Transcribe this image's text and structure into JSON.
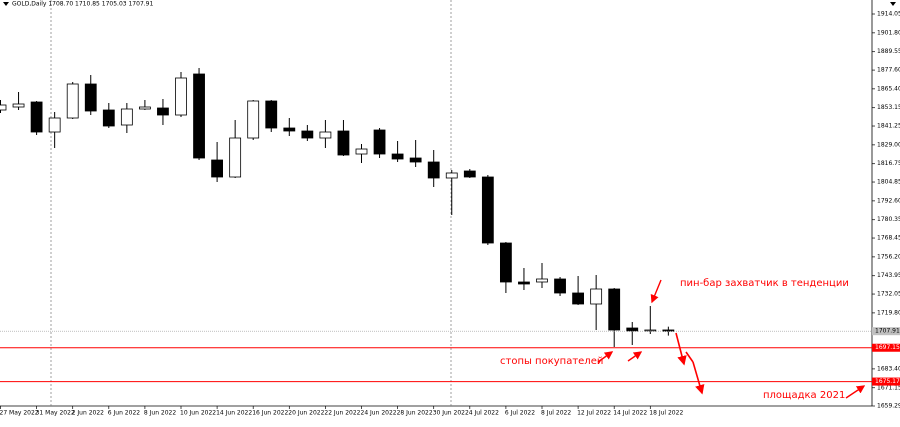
{
  "chart_data": {
    "type": "candlestick",
    "title": "GOLD,Daily  1708.70 1710.85 1705.03 1707.91",
    "categories": [
      "27 May 2022",
      null,
      "31 May 2022",
      null,
      "2 Jun 2022",
      null,
      "6 Jun 2022",
      null,
      "8 Jun 2022",
      null,
      "10 Jun 2022",
      null,
      "14 Jun 2022",
      null,
      "16 Jun 2022",
      null,
      "20 Jun 2022",
      null,
      "22 Jun 2022",
      null,
      "24 Jun 2022",
      null,
      "28 Jun 2022",
      null,
      "30 Jun 2022",
      null,
      "4 Jul 2022",
      null,
      "6 Jul 2022",
      null,
      "8 Jul 2022",
      null,
      "12 Jul 2022",
      null,
      "14 Jul 2022",
      null,
      "18 Jul 2022",
      null
    ],
    "open": [
      1851.66,
      1853.61,
      1856.86,
      1837.36,
      1846.46,
      1868.56,
      1851.66,
      1841.91,
      1852.31,
      1852.96,
      1848.41,
      1875.06,
      1819.16,
      1808.12,
      1833.46,
      1857.51,
      1839.96,
      1838.01,
      1833.46,
      1838.01,
      1823.06,
      1838.66,
      1823.06,
      1820.46,
      1817.86,
      1807.47,
      1812.02,
      1808.12,
      1765.22,
      1739.88,
      1739.88,
      1741.83,
      1732.73,
      1725.58,
      1735.33,
      1709.98,
      1708.03,
      1708.7
    ],
    "high": [
      1858.16,
      1863.36,
      1857.51,
      1850.36,
      1869.86,
      1874.41,
      1856.21,
      1856.21,
      1858.16,
      1858.81,
      1876.36,
      1878.96,
      1830.86,
      1845.16,
      1858.16,
      1858.16,
      1846.46,
      1841.91,
      1845.16,
      1845.16,
      1829.56,
      1839.96,
      1831.51,
      1832.16,
      1825.66,
      1812.67,
      1813.32,
      1809.42,
      1765.87,
      1748.98,
      1752.22,
      1743.13,
      1743.78,
      1744.43,
      1735.98,
      1713.88,
      1724.27,
      1710.85
    ],
    "low": [
      1849.71,
      1851.66,
      1835.41,
      1826.96,
      1845.8,
      1848.41,
      1839.96,
      1836.71,
      1851.66,
      1841.91,
      1847.11,
      1819.16,
      1804.87,
      1807.47,
      1832.16,
      1837.36,
      1834.76,
      1831.51,
      1826.96,
      1821.76,
      1817.21,
      1820.46,
      1817.86,
      1814.61,
      1801.62,
      1783.42,
      1807.47,
      1763.92,
      1732.73,
      1734.68,
      1735.98,
      1730.78,
      1724.92,
      1708.68,
      1697.63,
      1698.93,
      1706.08,
      1705.03
    ],
    "close": [
      1854.91,
      1855.56,
      1837.36,
      1846.46,
      1868.56,
      1851.01,
      1841.26,
      1852.31,
      1853.61,
      1848.41,
      1872.46,
      1820.46,
      1808.12,
      1833.46,
      1857.51,
      1839.96,
      1838.01,
      1833.46,
      1837.36,
      1822.41,
      1826.31,
      1823.06,
      1819.81,
      1817.86,
      1807.47,
      1810.72,
      1808.12,
      1765.22,
      1739.88,
      1738.58,
      1741.83,
      1732.73,
      1725.58,
      1735.33,
      1708.68,
      1708.03,
      1708.68,
      1707.91
    ],
    "up_color": "#ffffff",
    "down_color": "#000000",
    "ylim": [
      1659.29,
      1923.15
    ],
    "yticks": [
      1914.05,
      {
        "value": 1901.8,
        "label": "1901.80"
      },
      1889.55,
      {
        "value": 1877.6,
        "label": "1877.60"
      },
      {
        "value": 1865.4,
        "label": "1865.40"
      },
      1853.15,
      1841.25,
      {
        "value": 1829,
        "label": "1829.00"
      },
      1816.75,
      1804.85,
      {
        "value": 1792.6,
        "label": "1792.60"
      },
      1780.35,
      1768.45,
      {
        "value": 1756.2,
        "label": "1756.20"
      },
      1743.95,
      1732.05,
      {
        "value": 1719.8,
        "label": "1719.80"
      },
      {
        "value": 1683.4,
        "label": "1683.40"
      },
      1671.15,
      1659.29
    ],
    "last_price": 1707.91,
    "levels": [
      {
        "value": 1697.15,
        "color": "#ff0000"
      },
      {
        "value": 1675.17,
        "color": "#ff0000"
      }
    ],
    "annotations": [
      "пин-бар захватчик в тенденции",
      "стопы покупателей",
      "площадка 2021"
    ]
  }
}
